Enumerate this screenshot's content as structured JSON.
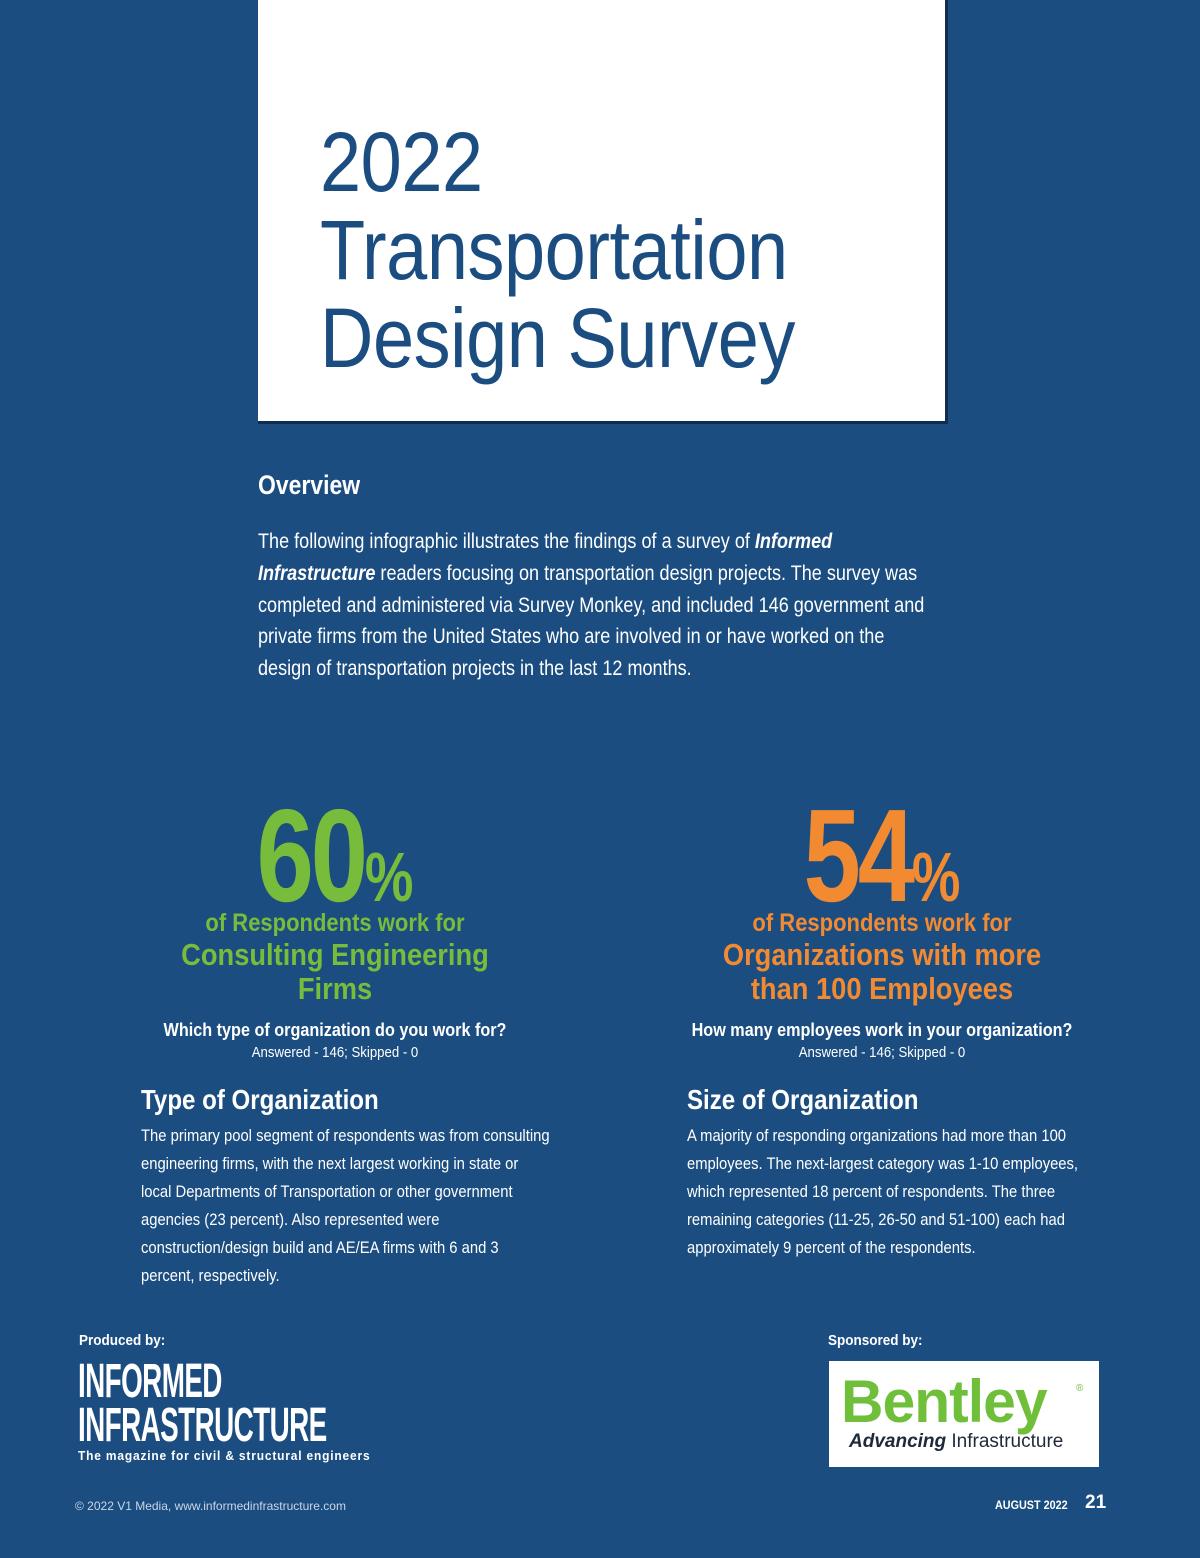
{
  "title": {
    "line1": "2022",
    "line2": "Transportation",
    "line3": "Design Survey"
  },
  "overview": {
    "heading": "Overview",
    "text_before": "The following infographic illustrates the findings of a survey of ",
    "publication": "Informed Infrastructure",
    "text_after": " readers focusing on transportation design projects. The survey was completed and administered via Survey Monkey, and included 146 government and private firms from the United States who are involved in or have worked on the design of transportation projects in the last 12 months."
  },
  "stats": [
    {
      "number": "60",
      "percent_sign": "%",
      "line1": "of Respondents work for",
      "line2a": "Consulting Engineering",
      "line2b": "Firms",
      "question": "Which type of organization do you work for?",
      "answered": "Answered - 146;  Skipped - 0",
      "color": "#78bc3b"
    },
    {
      "number": "54",
      "percent_sign": "%",
      "line1": "of Respondents work for",
      "line2a": "Organizations with more",
      "line2b": "than 100 Employees",
      "question": "How many employees work in your organization?",
      "answered": "Answered - 146;  Skipped - 0",
      "color": "#f28a32"
    }
  ],
  "sections": [
    {
      "heading": "Type of Organization",
      "text": "The primary pool segment of respondents was from consulting engineering firms, with the next largest working in state or local Departments of Transportation or other government agencies (23 percent). Also represented were construction/design build and AE/EA firms with 6 and 3 percent, respectively."
    },
    {
      "heading": "Size of Organization",
      "text": "A majority of responding organizations had more than 100 employees. The next-largest category was 1-10 employees, which represented 18 percent of respondents. The three remaining categories (11-25, 26-50 and 51-100) each had approximately 9 percent of the respondents."
    }
  ],
  "produced": {
    "label": "Produced by:",
    "logo_line1": "INFORMED",
    "logo_line2": "INFRASTRUCTURE",
    "tagline": "The magazine for civil & structural engineers"
  },
  "sponsored": {
    "label": "Sponsored by:",
    "brand": "Bentley",
    "registered": "®",
    "tag_bold": "Advancing",
    "tag_rest": " Infrastructure"
  },
  "footer": {
    "copyright": "© 2022 V1 Media, www.informedinfrastructure.com",
    "issue": "AUGUST 2022",
    "page": "21"
  },
  "colors": {
    "background": "#1b4d81",
    "green": "#78bc3b",
    "orange": "#f28a32",
    "white": "#ffffff"
  }
}
